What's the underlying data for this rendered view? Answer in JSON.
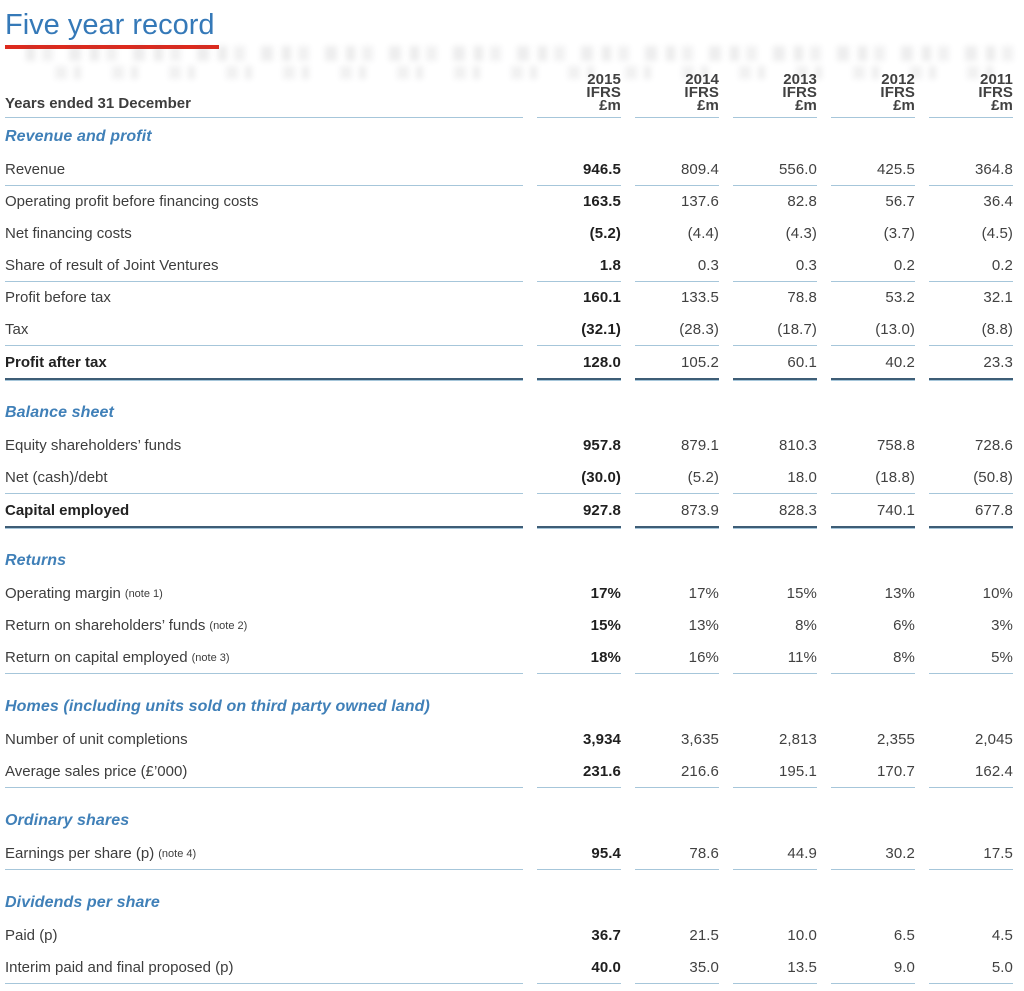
{
  "page": {
    "title": "Five year record"
  },
  "colors": {
    "heading_blue": "#3579b8",
    "title_underline_red": "#dc2a1e",
    "rule_light_blue": "#a6c6da",
    "rule_dark_total": "#3e5d76",
    "body_text": "#3d3d3d"
  },
  "table": {
    "row_header_label": "Years ended 31 December",
    "columns": [
      {
        "year": "2015",
        "basis": "IFRS",
        "unit": "£m"
      },
      {
        "year": "2014",
        "basis": "IFRS",
        "unit": "£m"
      },
      {
        "year": "2013",
        "basis": "IFRS",
        "unit": "£m"
      },
      {
        "year": "2012",
        "basis": "IFRS",
        "unit": "£m"
      },
      {
        "year": "2011",
        "basis": "IFRS",
        "unit": "£m"
      }
    ],
    "sections": [
      {
        "title": "Revenue and profit",
        "rows": [
          {
            "label": "Revenue",
            "values": [
              "946.5",
              "809.4",
              "556.0",
              "425.5",
              "364.8"
            ],
            "underline": true
          },
          {
            "label": "Operating profit before financing costs",
            "values": [
              "163.5",
              "137.6",
              "82.8",
              "56.7",
              "36.4"
            ]
          },
          {
            "label": "Net financing costs",
            "values": [
              "(5.2)",
              "(4.4)",
              "(4.3)",
              "(3.7)",
              "(4.5)"
            ]
          },
          {
            "label": "Share of result of Joint Ventures",
            "values": [
              "1.8",
              "0.3",
              "0.3",
              "0.2",
              "0.2"
            ],
            "underline": true
          },
          {
            "label": "Profit before tax",
            "values": [
              "160.1",
              "133.5",
              "78.8",
              "53.2",
              "32.1"
            ]
          },
          {
            "label": "Tax",
            "values": [
              "(32.1)",
              "(28.3)",
              "(18.7)",
              "(13.0)",
              "(8.8)"
            ],
            "underline": true
          },
          {
            "label": "Profit after tax",
            "values": [
              "128.0",
              "105.2",
              "60.1",
              "40.2",
              "23.3"
            ],
            "bold": true,
            "total": true
          }
        ]
      },
      {
        "title": "Balance sheet",
        "rows": [
          {
            "label": "Equity shareholders’ funds",
            "values": [
              "957.8",
              "879.1",
              "810.3",
              "758.8",
              "728.6"
            ]
          },
          {
            "label": "Net (cash)/debt",
            "values": [
              "(30.0)",
              "(5.2)",
              "18.0",
              "(18.8)",
              "(50.8)"
            ],
            "underline": true
          },
          {
            "label": "Capital employed",
            "values": [
              "927.8",
              "873.9",
              "828.3",
              "740.1",
              "677.8"
            ],
            "bold": true,
            "total": true
          }
        ]
      },
      {
        "title": "Returns",
        "rows": [
          {
            "label": "Operating margin",
            "note": "(note 1)",
            "values": [
              "17%",
              "17%",
              "15%",
              "13%",
              "10%"
            ]
          },
          {
            "label": "Return on shareholders’ funds",
            "note": "(note 2)",
            "values": [
              "15%",
              "13%",
              "8%",
              "6%",
              "3%"
            ]
          },
          {
            "label": "Return on capital employed",
            "note": "(note 3)",
            "values": [
              "18%",
              "16%",
              "11%",
              "8%",
              "5%"
            ],
            "underline": true
          }
        ]
      },
      {
        "title": "Homes (including units sold on third party owned land)",
        "rows": [
          {
            "label": "Number of unit completions",
            "values": [
              "3,934",
              "3,635",
              "2,813",
              "2,355",
              "2,045"
            ]
          },
          {
            "label": "Average sales price (£’000)",
            "values": [
              "231.6",
              "216.6",
              "195.1",
              "170.7",
              "162.4"
            ],
            "underline": true
          }
        ]
      },
      {
        "title": "Ordinary shares",
        "rows": [
          {
            "label": "Earnings per share (p)",
            "note": "(note 4)",
            "values": [
              "95.4",
              "78.6",
              "44.9",
              "30.2",
              "17.5"
            ],
            "underline": true
          }
        ]
      },
      {
        "title": "Dividends per share",
        "rows": [
          {
            "label": "Paid (p)",
            "values": [
              "36.7",
              "21.5",
              "10.0",
              "6.5",
              "4.5"
            ]
          },
          {
            "label": "Interim paid and final proposed (p)",
            "values": [
              "40.0",
              "35.0",
              "13.5",
              "9.0",
              "5.0"
            ],
            "underline": true
          }
        ]
      }
    ]
  }
}
